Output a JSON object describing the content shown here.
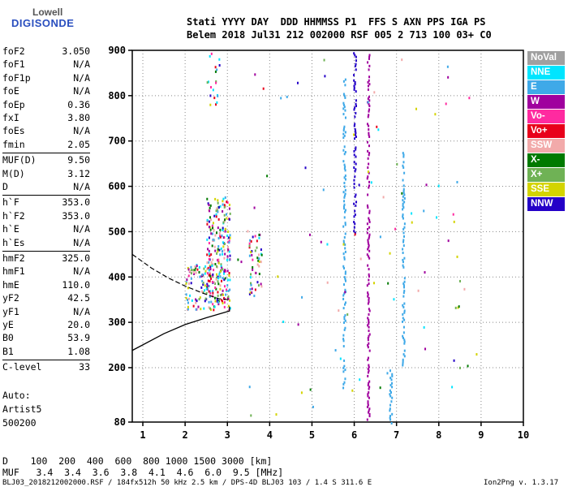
{
  "logo": {
    "line1": "Lowell",
    "line2": "DIGISONDE"
  },
  "header": {
    "line1": "Stati YYYY DAY  DDD HHMMSS P1  FFS S AXN PPS IGA PS",
    "line2": "Belem 2018 Jul31 212 002000 RSF 005 2 713 100 03+ C0"
  },
  "params_group1": [
    {
      "k": "foF2",
      "v": "3.050"
    },
    {
      "k": "foF1",
      "v": "N/A"
    },
    {
      "k": "foF1p",
      "v": "N/A"
    },
    {
      "k": "foE",
      "v": "N/A"
    },
    {
      "k": "foEp",
      "v": "0.36"
    },
    {
      "k": "fxI",
      "v": "3.80"
    },
    {
      "k": "foEs",
      "v": "N/A"
    },
    {
      "k": "fmin",
      "v": "2.05"
    }
  ],
  "params_group2": [
    {
      "k": "MUF(D)",
      "v": "9.50"
    },
    {
      "k": "M(D)",
      "v": "3.12"
    },
    {
      "k": "D",
      "v": "N/A"
    }
  ],
  "params_group3": [
    {
      "k": "h`F",
      "v": "353.0"
    },
    {
      "k": "h`F2",
      "v": "353.0"
    },
    {
      "k": "h`E",
      "v": "N/A"
    },
    {
      "k": "h`Es",
      "v": "N/A"
    }
  ],
  "params_group4": [
    {
      "k": "hmF2",
      "v": "325.0"
    },
    {
      "k": "hmF1",
      "v": "N/A"
    },
    {
      "k": "hmE",
      "v": "110.0"
    },
    {
      "k": "yF2",
      "v": "42.5"
    },
    {
      "k": "yF1",
      "v": "N/A"
    },
    {
      "k": "yE",
      "v": "20.0"
    },
    {
      "k": "B0",
      "v": "53.9"
    },
    {
      "k": "B1",
      "v": "1.08"
    }
  ],
  "params_group5": [
    {
      "k": "C-level",
      "v": "33"
    }
  ],
  "auto": {
    "line1": "Auto:",
    "line2": "Artist5",
    "line3": "500200"
  },
  "legend": [
    {
      "label": "NoVal",
      "color": "#a0a0a0"
    },
    {
      "label": "NNE",
      "color": "#00e5ff"
    },
    {
      "label": "E",
      "color": "#3fa9e8"
    },
    {
      "label": "W",
      "color": "#a0009e"
    },
    {
      "label": "Vo-",
      "color": "#ff2aa0"
    },
    {
      "label": "Vo+",
      "color": "#e8001a"
    },
    {
      "label": "SSW",
      "color": "#f2aaaa"
    },
    {
      "label": "X-",
      "color": "#007a00"
    },
    {
      "label": "X+",
      "color": "#6fb255"
    },
    {
      "label": "SSE",
      "color": "#d4d400"
    },
    {
      "label": "NNW",
      "color": "#2400c8"
    }
  ],
  "bottom": {
    "d_line": "D    100  200  400  600  800 1000 1500 3000 [km]",
    "muf_line": "MUF   3.4  3.4  3.6  3.8  4.1  4.6  6.0  9.5 [MHz]",
    "footer_left": "BLJ03_2018212002000.RSF / 184fx512h 50 kHz 2.5 km / DPS-4D BLJ03 103 / 1.4 S 311.6 E",
    "footer_right": "Ion2Png v. 1.3.17"
  },
  "chart_data": {
    "type": "scatter",
    "xlim": [
      0.75,
      10
    ],
    "ylim": [
      80,
      900
    ],
    "x_ticks": [
      1,
      2,
      3,
      4,
      5,
      6,
      7,
      8,
      9,
      10
    ],
    "y_ticks": [
      80,
      200,
      300,
      400,
      500,
      600,
      700,
      800,
      900
    ],
    "grid": "dotted",
    "profile_solid": [
      [
        0.75,
        238
      ],
      [
        1.5,
        275
      ],
      [
        2.0,
        295
      ],
      [
        2.5,
        310
      ],
      [
        3.05,
        325
      ],
      [
        3.05,
        335
      ]
    ],
    "profile_dashed": [
      [
        0.75,
        450
      ],
      [
        1.2,
        420
      ],
      [
        1.6,
        398
      ],
      [
        2.0,
        380
      ],
      [
        2.4,
        365
      ],
      [
        2.8,
        352
      ],
      [
        3.05,
        350
      ]
    ],
    "traces": [
      {
        "x": 6.32,
        "y0": 80,
        "y1": 900,
        "color": "#a0009e"
      },
      {
        "x": 7.15,
        "y0": 200,
        "y1": 680,
        "color": "#3fa9e8"
      },
      {
        "x": 6.85,
        "y0": 80,
        "y1": 200,
        "color": "#3fa9e8"
      },
      {
        "x": 6.0,
        "y0": 500,
        "y1": 900,
        "color": "#2400c8"
      },
      {
        "x": 5.75,
        "y0": 150,
        "y1": 840,
        "color": "#3fa9e8"
      }
    ],
    "clusters": [
      {
        "x0": 2.5,
        "x1": 3.05,
        "y0": 330,
        "y1": 580,
        "n": 260
      },
      {
        "x0": 2.0,
        "x1": 2.5,
        "y0": 330,
        "y1": 430,
        "n": 70
      },
      {
        "x0": 3.5,
        "x1": 3.8,
        "y0": 360,
        "y1": 500,
        "n": 50
      },
      {
        "x0": 2.5,
        "x1": 2.8,
        "y0": 780,
        "y1": 900,
        "n": 20
      }
    ]
  }
}
